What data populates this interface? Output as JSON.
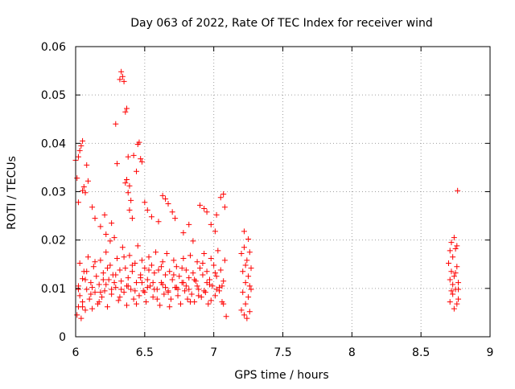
{
  "chart_data": {
    "type": "scatter",
    "title": "Day 063 of 2022, Rate Of TEC Index for receiver wind",
    "xlabel": "GPS time / hours",
    "ylabel": "ROTI / TECUs",
    "xlim": [
      6,
      9
    ],
    "ylim": [
      0,
      0.06
    ],
    "x_ticks": [
      6,
      6.5,
      7,
      7.5,
      8,
      8.5,
      9
    ],
    "x_tick_labels": [
      "6",
      "6.5",
      "7",
      "7.5",
      "8",
      "8.5",
      "9"
    ],
    "y_ticks": [
      0,
      0.01,
      0.02,
      0.03,
      0.04,
      0.05,
      0.06
    ],
    "y_tick_labels": [
      "0",
      "0.01",
      "0.02",
      "0.03",
      "0.04",
      "0.05",
      "0.06"
    ],
    "grid": true,
    "marker": "+",
    "color": "#ff0000",
    "series": [
      {
        "points": [
          [
            6.01,
            0.0045
          ],
          [
            6.02,
            0.0062
          ],
          [
            6.02,
            0.0105
          ],
          [
            6.03,
            0.0152
          ],
          [
            6.03,
            0.0085
          ],
          [
            6.04,
            0.0038
          ],
          [
            6.05,
            0.012
          ],
          [
            6.05,
            0.0072
          ],
          [
            6.06,
            0.0135
          ],
          [
            6.07,
            0.0055
          ],
          [
            6.08,
            0.0098
          ],
          [
            6.09,
            0.0165
          ],
          [
            6.1,
            0.0078
          ],
          [
            6.11,
            0.0112
          ],
          [
            6.12,
            0.0058
          ],
          [
            6.13,
            0.0145
          ],
          [
            6.14,
            0.0092
          ],
          [
            6.15,
            0.0125
          ],
          [
            6.16,
            0.0068
          ],
          [
            6.17,
            0.0108
          ],
          [
            6.18,
            0.0158
          ],
          [
            6.19,
            0.0082
          ],
          [
            6.2,
            0.0132
          ],
          [
            6.21,
            0.0095
          ],
          [
            6.22,
            0.0175
          ],
          [
            6.23,
            0.0062
          ],
          [
            6.24,
            0.0118
          ],
          [
            6.25,
            0.0148
          ],
          [
            6.26,
            0.0088
          ],
          [
            6.27,
            0.0128
          ],
          [
            6.28,
            0.0205
          ],
          [
            6.29,
            0.0102
          ],
          [
            6.3,
            0.0162
          ],
          [
            6.31,
            0.0075
          ],
          [
            6.32,
            0.0138
          ],
          [
            6.33,
            0.0115
          ],
          [
            6.34,
            0.0185
          ],
          [
            6.35,
            0.0092
          ],
          [
            6.36,
            0.0142
          ],
          [
            6.37,
            0.0065
          ],
          [
            6.38,
            0.0122
          ],
          [
            6.39,
            0.0168
          ],
          [
            6.4,
            0.0098
          ],
          [
            6.41,
            0.0135
          ],
          [
            6.42,
            0.0078
          ],
          [
            6.43,
            0.0152
          ],
          [
            6.44,
            0.0112
          ],
          [
            6.45,
            0.0188
          ],
          [
            6.46,
            0.0085
          ],
          [
            6.47,
            0.0128
          ],
          [
            6.48,
            0.0158
          ],
          [
            6.49,
            0.0095
          ],
          [
            6.5,
            0.0142
          ],
          [
            6.51,
            0.0072
          ],
          [
            6.52,
            0.0118
          ],
          [
            6.53,
            0.0165
          ],
          [
            6.54,
            0.0105
          ],
          [
            6.55,
            0.0148
          ],
          [
            6.56,
            0.0082
          ],
          [
            6.57,
            0.0132
          ],
          [
            6.58,
            0.0175
          ],
          [
            6.59,
            0.0098
          ],
          [
            6.6,
            0.0138
          ],
          [
            6.61,
            0.0065
          ],
          [
            6.62,
            0.0112
          ],
          [
            6.63,
            0.0155
          ],
          [
            6.64,
            0.0088
          ],
          [
            6.65,
            0.0128
          ],
          [
            6.66,
            0.0172
          ],
          [
            6.67,
            0.0092
          ],
          [
            6.68,
            0.0135
          ],
          [
            6.69,
            0.0078
          ],
          [
            6.7,
            0.0118
          ],
          [
            6.71,
            0.0158
          ],
          [
            6.72,
            0.0102
          ],
          [
            6.73,
            0.0145
          ],
          [
            6.74,
            0.0085
          ],
          [
            6.75,
            0.0125
          ],
          [
            6.76,
            0.0068
          ],
          [
            6.77,
            0.0112
          ],
          [
            6.78,
            0.0162
          ],
          [
            6.79,
            0.0095
          ],
          [
            6.8,
            0.0138
          ],
          [
            6.81,
            0.0078
          ],
          [
            6.82,
            0.0122
          ],
          [
            6.83,
            0.0168
          ],
          [
            6.84,
            0.0088
          ],
          [
            6.85,
            0.0132
          ],
          [
            6.86,
            0.0072
          ],
          [
            6.87,
            0.0115
          ],
          [
            6.88,
            0.0155
          ],
          [
            6.89,
            0.0098
          ],
          [
            6.9,
            0.0142
          ],
          [
            6.91,
            0.0082
          ],
          [
            6.92,
            0.0128
          ],
          [
            6.93,
            0.0172
          ],
          [
            6.94,
            0.0092
          ],
          [
            6.95,
            0.0135
          ],
          [
            6.96,
            0.0068
          ],
          [
            6.97,
            0.0118
          ],
          [
            6.98,
            0.0162
          ],
          [
            6.99,
            0.0105
          ],
          [
            7.0,
            0.0148
          ],
          [
            7.01,
            0.0085
          ],
          [
            7.02,
            0.0125
          ],
          [
            7.03,
            0.0178
          ],
          [
            7.04,
            0.0095
          ],
          [
            7.05,
            0.0138
          ],
          [
            7.06,
            0.0072
          ],
          [
            7.07,
            0.0115
          ],
          [
            7.08,
            0.0158
          ],
          [
            7.09,
            0.0042
          ],
          [
            6.05,
            0.0062
          ],
          [
            6.08,
            0.0135
          ],
          [
            6.11,
            0.0088
          ],
          [
            6.14,
            0.0155
          ],
          [
            6.17,
            0.0072
          ],
          [
            6.2,
            0.0118
          ],
          [
            6.23,
            0.0142
          ],
          [
            6.26,
            0.0098
          ],
          [
            6.29,
            0.0128
          ],
          [
            6.32,
            0.0082
          ],
          [
            6.35,
            0.0165
          ],
          [
            6.38,
            0.0105
          ],
          [
            6.41,
            0.0148
          ],
          [
            6.44,
            0.0068
          ],
          [
            6.47,
            0.0122
          ],
          [
            6.5,
            0.0092
          ],
          [
            6.53,
            0.0138
          ],
          [
            6.56,
            0.0112
          ],
          [
            6.59,
            0.0078
          ],
          [
            6.62,
            0.0145
          ],
          [
            6.65,
            0.0102
          ],
          [
            6.68,
            0.0062
          ],
          [
            6.71,
            0.0128
          ],
          [
            6.74,
            0.0098
          ],
          [
            6.77,
            0.0142
          ],
          [
            6.8,
            0.0105
          ],
          [
            6.83,
            0.0072
          ],
          [
            6.86,
            0.0118
          ],
          [
            6.89,
            0.0085
          ],
          [
            6.92,
            0.0152
          ],
          [
            6.95,
            0.0112
          ],
          [
            6.98,
            0.0075
          ],
          [
            7.01,
            0.0132
          ],
          [
            7.04,
            0.0102
          ],
          [
            7.07,
            0.0068
          ],
          [
            6.02,
            0.0098
          ],
          [
            6.07,
            0.0118
          ],
          [
            6.12,
            0.0102
          ],
          [
            6.18,
            0.0092
          ],
          [
            6.22,
            0.0108
          ],
          [
            6.28,
            0.0112
          ],
          [
            6.33,
            0.0098
          ],
          [
            6.37,
            0.0105
          ],
          [
            6.43,
            0.0095
          ],
          [
            6.48,
            0.0112
          ],
          [
            6.52,
            0.0102
          ],
          [
            6.57,
            0.0098
          ],
          [
            6.63,
            0.0108
          ],
          [
            6.67,
            0.0095
          ],
          [
            6.73,
            0.0102
          ],
          [
            6.78,
            0.0112
          ],
          [
            6.82,
            0.0098
          ],
          [
            6.88,
            0.0105
          ],
          [
            6.93,
            0.0095
          ],
          [
            6.97,
            0.0108
          ],
          [
            7.02,
            0.0098
          ],
          [
            7.06,
            0.0105
          ],
          [
            6.0,
            0.0365
          ],
          [
            6.01,
            0.0328
          ],
          [
            6.02,
            0.0372
          ],
          [
            6.03,
            0.0385
          ],
          [
            6.04,
            0.0395
          ],
          [
            6.05,
            0.0405
          ],
          [
            6.06,
            0.031
          ],
          [
            6.07,
            0.0298
          ],
          [
            6.08,
            0.0355
          ],
          [
            6.09,
            0.0322
          ],
          [
            6.02,
            0.0278
          ],
          [
            6.05,
            0.0302
          ],
          [
            6.12,
            0.0268
          ],
          [
            6.14,
            0.0245
          ],
          [
            6.18,
            0.0228
          ],
          [
            6.22,
            0.0212
          ],
          [
            6.26,
            0.0235
          ],
          [
            6.25,
            0.0198
          ],
          [
            6.21,
            0.0252
          ],
          [
            6.29,
            0.044
          ],
          [
            6.3,
            0.0358
          ],
          [
            6.32,
            0.0532
          ],
          [
            6.33,
            0.0548
          ],
          [
            6.34,
            0.0538
          ],
          [
            6.35,
            0.0528
          ],
          [
            6.36,
            0.0465
          ],
          [
            6.37,
            0.0472
          ],
          [
            6.38,
            0.0372
          ],
          [
            6.36,
            0.0318
          ],
          [
            6.37,
            0.0325
          ],
          [
            6.39,
            0.0312
          ],
          [
            6.38,
            0.0298
          ],
          [
            6.4,
            0.0282
          ],
          [
            6.41,
            0.0245
          ],
          [
            6.39,
            0.0262
          ],
          [
            6.42,
            0.0375
          ],
          [
            6.45,
            0.0398
          ],
          [
            6.46,
            0.0402
          ],
          [
            6.47,
            0.0368
          ],
          [
            6.48,
            0.0362
          ],
          [
            6.44,
            0.0342
          ],
          [
            6.5,
            0.0278
          ],
          [
            6.52,
            0.0262
          ],
          [
            6.55,
            0.0248
          ],
          [
            6.6,
            0.0238
          ],
          [
            6.63,
            0.0292
          ],
          [
            6.65,
            0.0285
          ],
          [
            6.67,
            0.0275
          ],
          [
            6.7,
            0.0258
          ],
          [
            6.72,
            0.0245
          ],
          [
            6.78,
            0.0215
          ],
          [
            6.82,
            0.0232
          ],
          [
            6.9,
            0.0272
          ],
          [
            6.93,
            0.0265
          ],
          [
            6.95,
            0.0258
          ],
          [
            7.02,
            0.0252
          ],
          [
            7.05,
            0.0288
          ],
          [
            7.07,
            0.0295
          ],
          [
            7.08,
            0.0268
          ],
          [
            6.98,
            0.0232
          ],
          [
            6.85,
            0.0198
          ],
          [
            7.01,
            0.0218
          ],
          [
            7.2,
            0.0172
          ],
          [
            7.21,
            0.0135
          ],
          [
            7.21,
            0.0092
          ],
          [
            7.22,
            0.0045
          ],
          [
            7.22,
            0.0185
          ],
          [
            7.23,
            0.0112
          ],
          [
            7.23,
            0.0068
          ],
          [
            7.24,
            0.0158
          ],
          [
            7.24,
            0.0038
          ],
          [
            7.25,
            0.0125
          ],
          [
            7.25,
            0.0082
          ],
          [
            7.26,
            0.0175
          ],
          [
            7.26,
            0.0052
          ],
          [
            7.27,
            0.0142
          ],
          [
            7.27,
            0.0098
          ],
          [
            7.22,
            0.0218
          ],
          [
            7.25,
            0.0202
          ],
          [
            7.2,
            0.0055
          ],
          [
            7.23,
            0.0148
          ],
          [
            7.26,
            0.0105
          ],
          [
            8.7,
            0.0152
          ],
          [
            8.71,
            0.0118
          ],
          [
            8.71,
            0.0072
          ],
          [
            8.72,
            0.0195
          ],
          [
            8.72,
            0.0135
          ],
          [
            8.73,
            0.0088
          ],
          [
            8.73,
            0.0165
          ],
          [
            8.74,
            0.0058
          ],
          [
            8.74,
            0.0125
          ],
          [
            8.75,
            0.0182
          ],
          [
            8.75,
            0.0098
          ],
          [
            8.76,
            0.0145
          ],
          [
            8.76,
            0.0068
          ],
          [
            8.77,
            0.0112
          ],
          [
            8.77,
            0.0078
          ],
          [
            8.74,
            0.0205
          ],
          [
            8.76,
            0.0188
          ],
          [
            8.73,
            0.0108
          ],
          [
            8.75,
            0.0132
          ],
          [
            8.72,
            0.0095
          ],
          [
            8.71,
            0.0178
          ],
          [
            8.77,
            0.0098
          ],
          [
            8.765,
            0.0302
          ]
        ]
      }
    ]
  }
}
